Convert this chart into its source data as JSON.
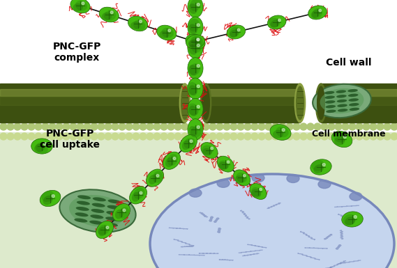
{
  "bg_top": "#ffffff",
  "bg_bottom": "#ddeacc",
  "cell_wall_color_dark": "#3d5010",
  "cell_wall_color_mid": "#5a7020",
  "cell_wall_color_light": "#8a9e40",
  "membrane_dot_color1": "#b0c878",
  "membrane_dot_color2": "#c8da90",
  "gfp_color": "#44bb11",
  "gfp_mid": "#33990d",
  "gfp_dark": "#226608",
  "gfp_shadow": "#1a5506",
  "polymer_color": "#dd1111",
  "backbone_color": "#111111",
  "nucleus_fill": "#c5d5ee",
  "nucleus_border": "#7788bb",
  "nucleus_inner": "#a0b8d8",
  "chloroplast_fill": "#7aaa7a",
  "chloroplast_border": "#3a6a3a",
  "chloroplast_stripe": "#225522",
  "chloroplast_fill2": "#5a9a5a",
  "label_pnc_complex": "PNC-GFP\ncomplex",
  "label_cell_wall": "Cell wall",
  "label_cell_membrane": "Cell membrane",
  "label_pnc_uptake": "PNC-GFP\ncell uptake"
}
